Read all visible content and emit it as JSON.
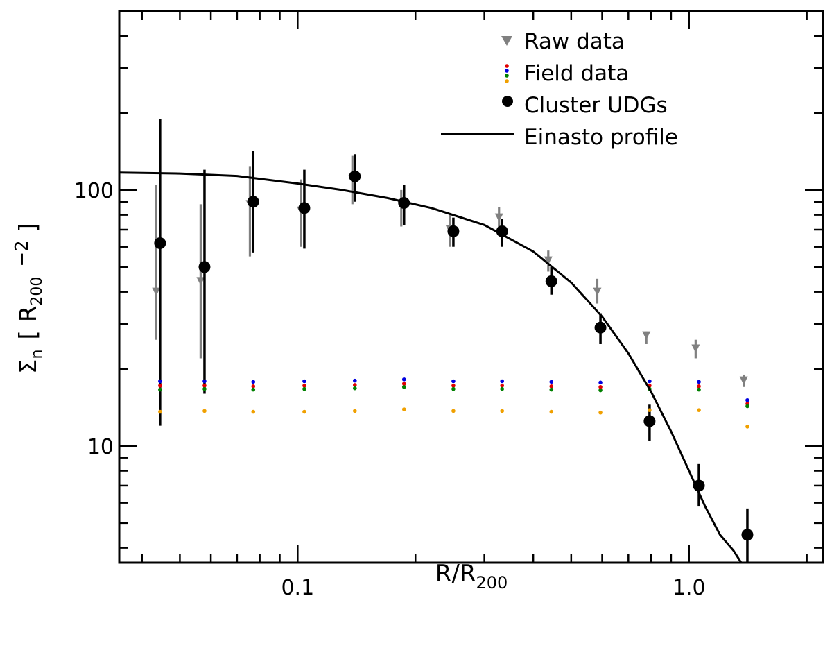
{
  "chart_data": {
    "type": "scatter",
    "title": "",
    "xlabel": {
      "base": "R/R",
      "sub": "200"
    },
    "ylabel": {
      "main": "Σ",
      "sub_n": "n",
      "open": "[",
      "r": "R",
      "sub": "200",
      "exp": "−2",
      "close": "]"
    },
    "x_scale": "log",
    "y_scale": "log",
    "xlim": [
      0.035,
      2.2
    ],
    "ylim": [
      3.5,
      500
    ],
    "x_tick_labels": [
      {
        "value": 0.1,
        "label": "0.1"
      },
      {
        "value": 1.0,
        "label": "1.0"
      }
    ],
    "y_tick_labels": [
      {
        "value": 10,
        "label": "10"
      },
      {
        "value": 100,
        "label": "100"
      }
    ],
    "x_minor_ticks": [
      0.04,
      0.05,
      0.06,
      0.07,
      0.08,
      0.09,
      0.2,
      0.3,
      0.4,
      0.5,
      0.6,
      0.7,
      0.8,
      0.9,
      2.0
    ],
    "y_minor_ticks": [
      4,
      5,
      6,
      7,
      8,
      9,
      20,
      30,
      40,
      50,
      60,
      70,
      80,
      90,
      200,
      300,
      400
    ],
    "legend": {
      "position": "top-right",
      "entries": [
        {
          "label": "Raw data",
          "symbol": "triangle",
          "color": "#808080"
        },
        {
          "label": "Field data",
          "symbol": "dots",
          "colors": [
            "#e00000",
            "#0000e0",
            "#008000",
            "#f0a000"
          ]
        },
        {
          "label": "Cluster UDGs",
          "symbol": "circle",
          "color": "#000000"
        },
        {
          "label": "Einasto profile",
          "symbol": "line",
          "color": "#000000"
        }
      ]
    },
    "series": [
      {
        "name": "Raw data",
        "color": "#808080",
        "marker": "triangle",
        "x": [
          0.0435,
          0.0565,
          0.0755,
          0.102,
          0.138,
          0.184,
          0.245,
          0.327,
          0.437,
          0.583,
          0.778,
          1.04,
          1.38
        ],
        "y": [
          40,
          44,
          88,
          83,
          110,
          88,
          70,
          78,
          53,
          40,
          27,
          24,
          18
        ],
        "err_low": [
          26,
          22,
          55,
          60,
          88,
          72,
          60,
          70,
          48,
          36,
          25,
          22,
          17
        ],
        "err_high": [
          105,
          88,
          124,
          110,
          136,
          100,
          80,
          86,
          58,
          45,
          28,
          26,
          19
        ]
      },
      {
        "name": "Cluster UDGs",
        "color": "#000000",
        "marker": "circle",
        "x": [
          0.0445,
          0.0578,
          0.077,
          0.104,
          0.14,
          0.187,
          0.25,
          0.333,
          0.445,
          0.594,
          0.793,
          1.06,
          1.41
        ],
        "y": [
          62,
          50,
          90,
          85,
          113,
          89,
          69,
          69,
          44,
          29,
          12.5,
          7,
          4.5
        ],
        "err_low": [
          12,
          16,
          57,
          59,
          90,
          73,
          60,
          60,
          39,
          25,
          10.5,
          5.8,
          3.3
        ],
        "err_high": [
          190,
          120,
          142,
          120,
          138,
          105,
          78,
          77,
          50,
          33,
          14.5,
          8.5,
          5.7
        ]
      },
      {
        "name": "Field data (red)",
        "color": "#e00000",
        "marker": "dot",
        "x": [
          0.0445,
          0.0578,
          0.077,
          0.104,
          0.14,
          0.187,
          0.25,
          0.333,
          0.445,
          0.594,
          0.793,
          1.06,
          1.41
        ],
        "y": [
          17.2,
          17.2,
          17.1,
          17.2,
          17.3,
          17.5,
          17.2,
          17.2,
          17.1,
          17.0,
          17.2,
          17.1,
          14.6
        ]
      },
      {
        "name": "Field data (blue)",
        "color": "#0000e0",
        "marker": "dot",
        "x": [
          0.0445,
          0.0578,
          0.077,
          0.104,
          0.14,
          0.187,
          0.25,
          0.333,
          0.445,
          0.594,
          0.793,
          1.06,
          1.41
        ],
        "y": [
          17.9,
          17.9,
          17.8,
          17.9,
          18.0,
          18.2,
          17.9,
          17.9,
          17.8,
          17.7,
          17.9,
          17.8,
          15.1
        ]
      },
      {
        "name": "Field data (green)",
        "color": "#008000",
        "marker": "dot",
        "x": [
          0.0445,
          0.0578,
          0.077,
          0.104,
          0.14,
          0.187,
          0.25,
          0.333,
          0.445,
          0.594,
          0.793,
          1.06,
          1.41
        ],
        "y": [
          16.6,
          16.7,
          16.6,
          16.7,
          16.8,
          17.0,
          16.7,
          16.7,
          16.6,
          16.5,
          16.7,
          16.6,
          14.3
        ]
      },
      {
        "name": "Field data (orange)",
        "color": "#f0a000",
        "marker": "dot",
        "x": [
          0.0445,
          0.0578,
          0.077,
          0.104,
          0.14,
          0.187,
          0.25,
          0.333,
          0.445,
          0.594,
          0.793,
          1.06,
          1.41
        ],
        "y": [
          13.6,
          13.7,
          13.6,
          13.6,
          13.7,
          13.9,
          13.7,
          13.7,
          13.6,
          13.5,
          13.8,
          13.8,
          11.9
        ]
      },
      {
        "name": "Einasto profile",
        "color": "#000000",
        "marker": "line",
        "x": [
          0.035,
          0.05,
          0.07,
          0.1,
          0.13,
          0.17,
          0.22,
          0.3,
          0.4,
          0.5,
          0.6,
          0.7,
          0.8,
          0.9,
          1.0,
          1.1,
          1.2,
          1.3,
          1.36
        ],
        "y": [
          117,
          116,
          113.5,
          106,
          100,
          93,
          85,
          73,
          57.5,
          43.5,
          32,
          23,
          16.3,
          11.4,
          8,
          5.8,
          4.5,
          3.9,
          3.5
        ]
      }
    ]
  }
}
